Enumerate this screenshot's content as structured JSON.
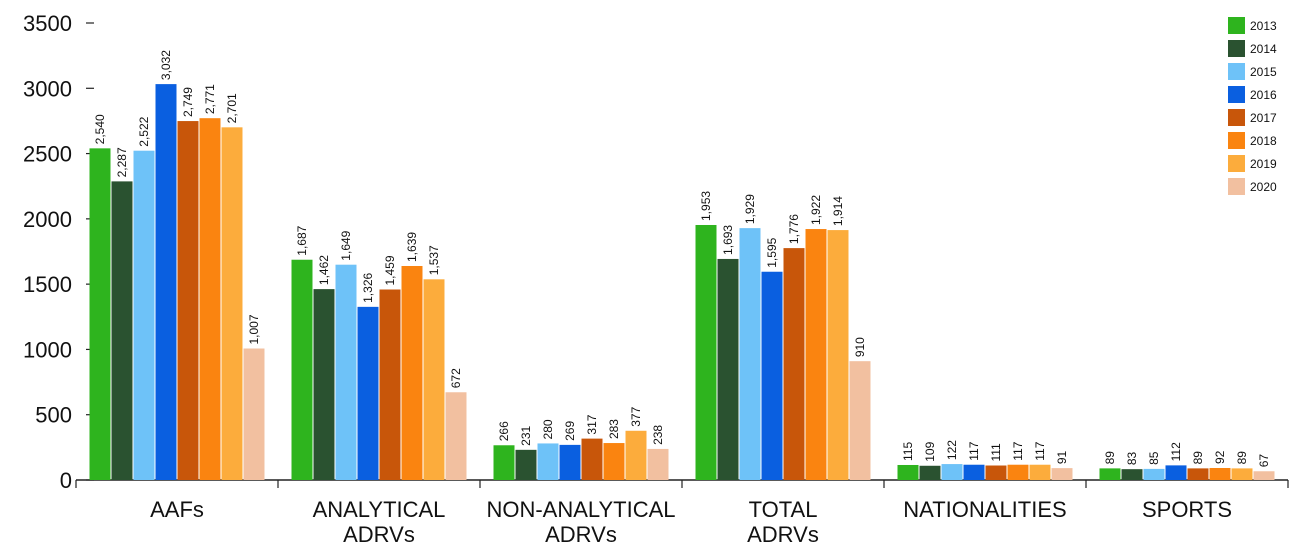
{
  "chart_data": {
    "type": "bar",
    "categories": [
      [
        "AAFs"
      ],
      [
        "ANALYTICAL",
        "ADRVs"
      ],
      [
        "NON-ANALYTICAL",
        "ADRVs"
      ],
      [
        "TOTAL",
        "ADRVs"
      ],
      [
        "NATIONALITIES"
      ],
      [
        "SPORTS"
      ]
    ],
    "series": [
      {
        "name": "2013",
        "color": "#2eb41e",
        "values": [
          2540,
          1687,
          266,
          1953,
          115,
          89
        ]
      },
      {
        "name": "2014",
        "color": "#2a5230",
        "values": [
          2287,
          1462,
          231,
          1693,
          109,
          83
        ]
      },
      {
        "name": "2015",
        "color": "#6ec2f8",
        "values": [
          2522,
          1649,
          280,
          1929,
          122,
          85
        ]
      },
      {
        "name": "2016",
        "color": "#0a5fe0",
        "values": [
          3032,
          1326,
          269,
          1595,
          117,
          112
        ]
      },
      {
        "name": "2017",
        "color": "#c8560a",
        "values": [
          2749,
          1459,
          317,
          1776,
          111,
          89
        ]
      },
      {
        "name": "2018",
        "color": "#fa8410",
        "values": [
          2771,
          1639,
          283,
          1922,
          117,
          92
        ]
      },
      {
        "name": "2019",
        "color": "#fcac3c",
        "values": [
          2701,
          1537,
          377,
          1914,
          117,
          89
        ]
      },
      {
        "name": "2020",
        "color": "#f2c0a0",
        "values": [
          1007,
          672,
          238,
          910,
          91,
          67
        ]
      }
    ],
    "ylim": [
      0,
      3500
    ],
    "yticks": [
      0,
      500,
      1000,
      1500,
      2000,
      2500,
      3000,
      3500
    ],
    "title": "",
    "xlabel": "",
    "ylabel": "",
    "grid": false,
    "legend": "top-right"
  }
}
